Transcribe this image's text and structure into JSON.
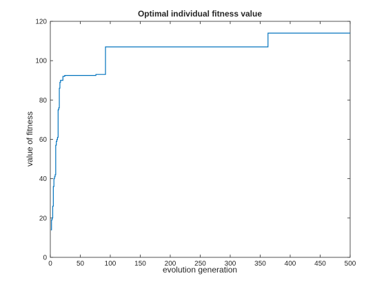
{
  "chart_data": {
    "type": "line",
    "title": "Optimal individual fitness value",
    "xlabel": "evolution generation",
    "ylabel": "value of fitness",
    "xlim": [
      0,
      500
    ],
    "ylim": [
      0,
      120
    ],
    "xticks": [
      "0",
      "50",
      "100",
      "150",
      "200",
      "250",
      "300",
      "350",
      "400",
      "450",
      "500"
    ],
    "yticks": [
      "0",
      "20",
      "40",
      "60",
      "80",
      "100",
      "120"
    ],
    "grid": false,
    "line_color": "#0072bd",
    "series": [
      {
        "x": [
          1,
          2,
          2,
          3,
          3,
          4,
          4,
          5,
          5,
          6,
          6,
          7,
          7,
          8,
          8,
          9,
          9,
          10,
          10,
          11,
          11,
          12,
          12,
          13,
          13,
          14,
          14,
          15,
          15,
          16,
          16,
          17,
          17,
          18,
          18,
          19,
          19,
          21,
          21,
          24,
          24,
          76,
          76,
          92,
          92,
          363,
          363,
          500
        ],
        "y": [
          14,
          14,
          19,
          19,
          20,
          20,
          26,
          26,
          36,
          36,
          40,
          40,
          41,
          41,
          42,
          42,
          57,
          57,
          59,
          59,
          60,
          60,
          61,
          61,
          75,
          75,
          76,
          76,
          86,
          86,
          89,
          89,
          90,
          90,
          90,
          90,
          90,
          90,
          92,
          92,
          92.5,
          92.5,
          93,
          93,
          107,
          107,
          114,
          114
        ]
      }
    ]
  }
}
